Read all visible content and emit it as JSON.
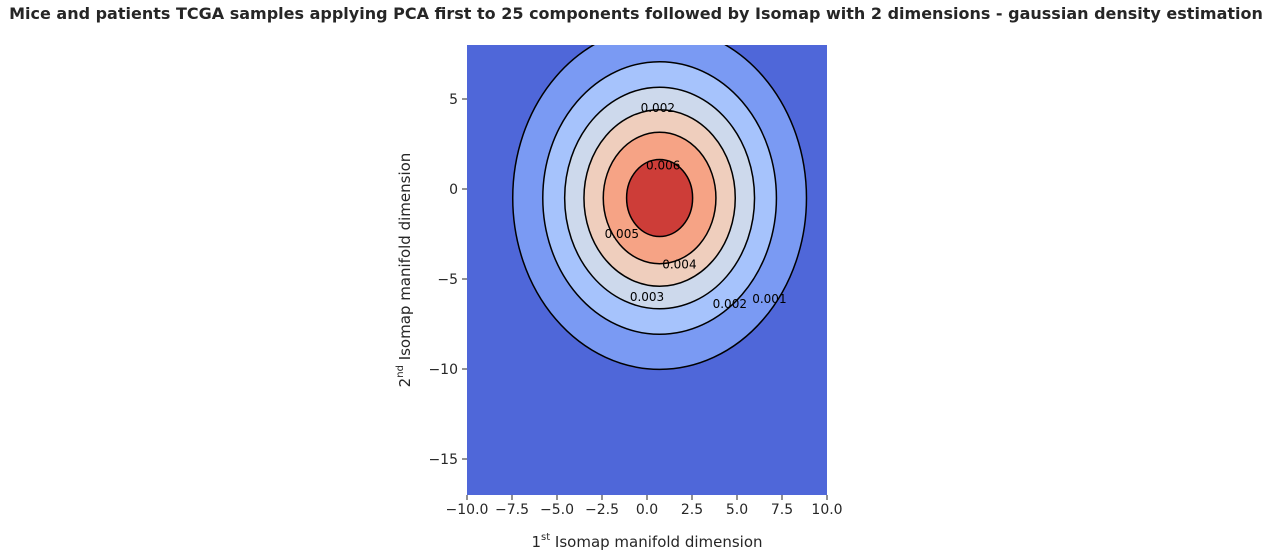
{
  "chart_data": {
    "type": "contour",
    "title": "Mice and patients TCGA samples applying PCA first to 25 components followed by Isomap with 2 dimensions - gaussian density estimation",
    "xlabel_main": "1",
    "xlabel_sup": "st",
    "xlabel_rest": " Isomap manifold dimension",
    "ylabel_main": "2",
    "ylabel_sup": "nd",
    "ylabel_rest": " Isomap manifold dimension",
    "xlim": [
      -10,
      10
    ],
    "ylim": [
      -17,
      8
    ],
    "xticks": [
      -10.0,
      -7.5,
      -5.0,
      -2.5,
      0.0,
      2.5,
      5.0,
      7.5,
      10.0
    ],
    "xtick_labels": [
      "−10.0",
      "−7.5",
      "−5.0",
      "−2.5",
      "0.0",
      "2.5",
      "5.0",
      "7.5",
      "10.0"
    ],
    "yticks": [
      5,
      0,
      -5,
      -10,
      -15
    ],
    "ytick_labels": [
      "5",
      "0",
      "−5",
      "−10",
      "−15"
    ],
    "grid": false,
    "colormap": "coolwarm",
    "background_color": "#4f67d9",
    "levels": [
      0.001,
      0.002,
      0.003,
      0.004,
      0.005,
      0.006
    ],
    "fill_colors": [
      "#7a9af3",
      "#a6c3fc",
      "#cdd9ec",
      "#efcebd",
      "#f6a385",
      "#e7745b",
      "#cd3d38"
    ],
    "contour_labels": [
      {
        "text": "0.002",
        "x": 0.6,
        "y": 4.5
      },
      {
        "text": "0.006",
        "x": 0.9,
        "y": 1.3
      },
      {
        "text": "0.005",
        "x": -1.4,
        "y": -2.5
      },
      {
        "text": "0.004",
        "x": 1.8,
        "y": -4.2
      },
      {
        "text": "0.003",
        "x": 0.0,
        "y": -6.0
      },
      {
        "text": "0.002",
        "x": 4.6,
        "y": -6.4
      },
      {
        "text": "0.001",
        "x": 6.8,
        "y": -6.1
      }
    ],
    "density_model": {
      "center": [
        0.7,
        -0.5
      ],
      "sigma_x": 4.2,
      "sigma_y": 4.9,
      "correlation": 0.0,
      "peak": 0.0066
    }
  }
}
